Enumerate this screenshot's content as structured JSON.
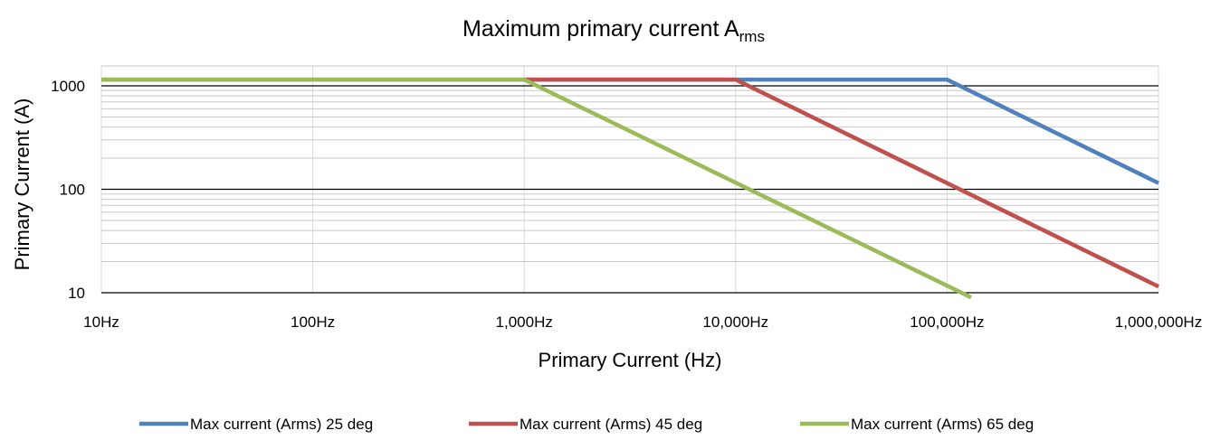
{
  "chart_data": {
    "type": "line",
    "title": "Maximum  primary current A",
    "title_subscript": "rms",
    "xlabel": "Primary Current (Hz)",
    "ylabel": "Primary Current (A)",
    "x_scale": "log",
    "y_scale": "log",
    "xlim": [
      10,
      1000000
    ],
    "ylim": [
      10,
      1500
    ],
    "x_ticks": [
      10,
      100,
      1000,
      10000,
      100000,
      1000000
    ],
    "x_tick_labels": [
      "10Hz",
      "100Hz",
      "1,000Hz",
      "10,000Hz",
      "100,000Hz",
      "1,000,000Hz"
    ],
    "y_ticks": [
      10,
      100,
      1000
    ],
    "y_tick_labels": [
      "10",
      "100",
      "1000"
    ],
    "grid": true,
    "legend_position": "bottom",
    "series": [
      {
        "name": "Max current (Arms) 25 deg",
        "color": "#4f81bd",
        "points": [
          [
            10,
            1150
          ],
          [
            100000,
            1150
          ],
          [
            1000000,
            115
          ]
        ]
      },
      {
        "name": "Max current (Arms) 45 deg",
        "color": "#c0504d",
        "points": [
          [
            1000,
            1150
          ],
          [
            10000,
            1150
          ],
          [
            1000000,
            11.5
          ]
        ]
      },
      {
        "name": "Max current (Arms) 65 deg",
        "color": "#9bbb59",
        "points": [
          [
            10,
            1150
          ],
          [
            1000,
            1150
          ],
          [
            130000,
            9
          ]
        ]
      }
    ]
  }
}
